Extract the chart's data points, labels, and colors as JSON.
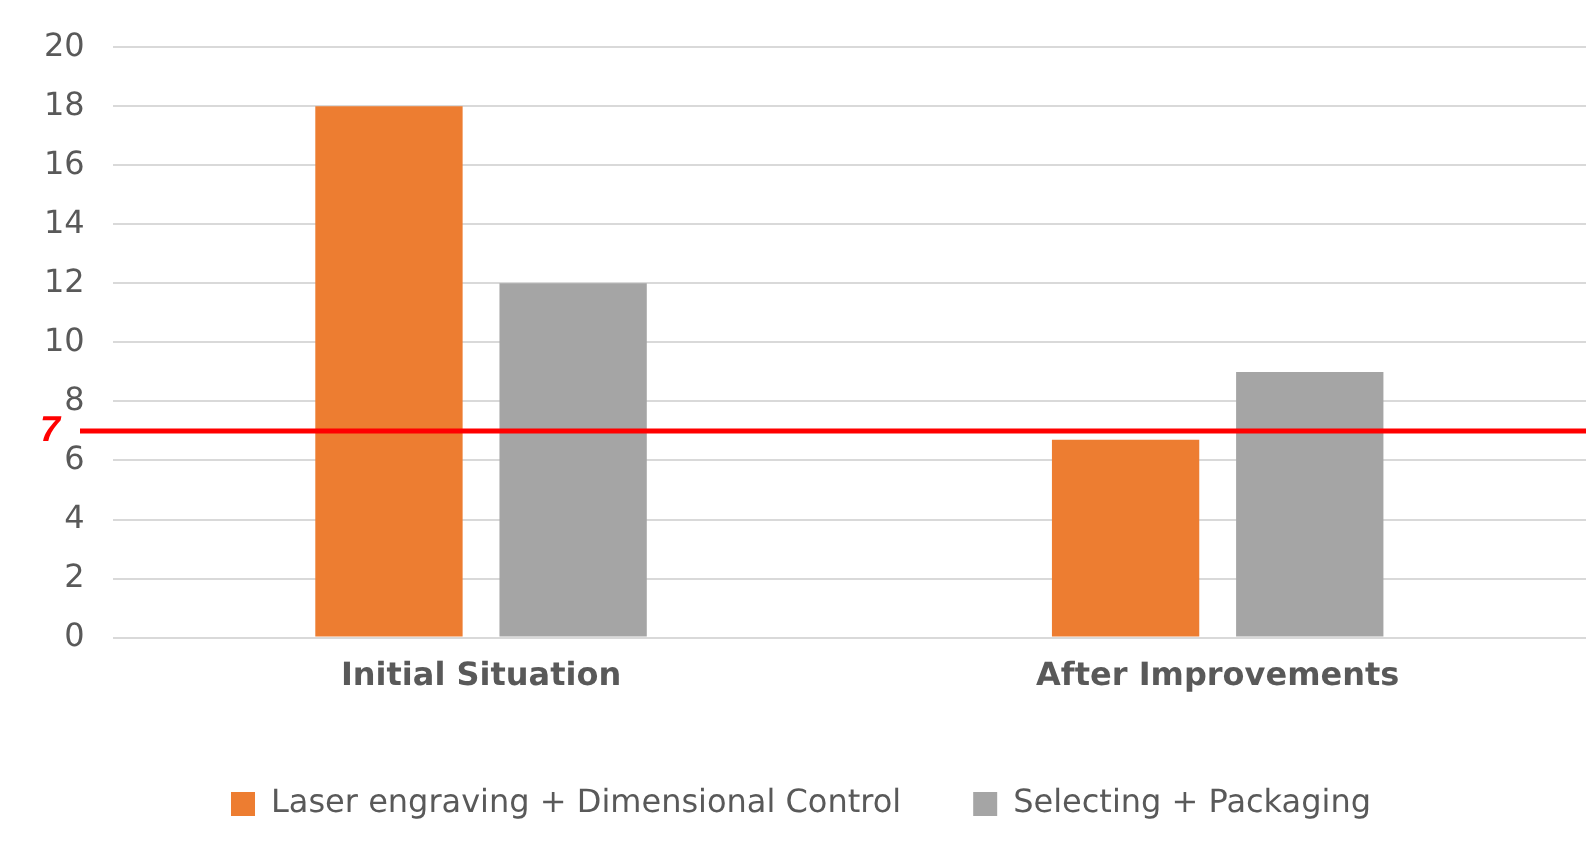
{
  "chart_data": {
    "type": "bar",
    "categories": [
      "Initial Situation",
      "After Improvements"
    ],
    "series": [
      {
        "name": "Laser engraving + Dimensional Control",
        "color": "#ed7d31",
        "values": [
          18,
          6.7
        ]
      },
      {
        "name": "Selecting + Packaging",
        "color": "#a5a5a5",
        "values": [
          12,
          9
        ]
      }
    ],
    "ylim": [
      0,
      20
    ],
    "yticks": [
      0,
      2,
      4,
      6,
      8,
      10,
      12,
      14,
      16,
      18,
      20
    ],
    "grid": "y",
    "legend": "bottom",
    "ref_lines": [
      {
        "axis": "y",
        "value": 7,
        "label": "7",
        "color": "#ff0000"
      }
    ]
  }
}
